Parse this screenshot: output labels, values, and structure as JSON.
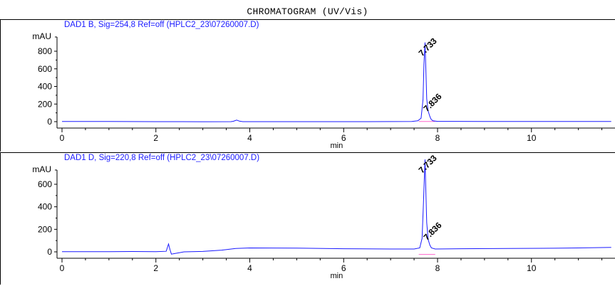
{
  "title": "CHROMATOGRAM (UV/Vis)",
  "chart_data": [
    {
      "type": "line",
      "title": "DAD1 B, Sig=254,8 Ref=off (HPLC2_23\\07260007.D)",
      "ylabel": "mAU",
      "xlabel": "min",
      "xlim": [
        0,
        11.7
      ],
      "ylim": [
        -60,
        900
      ],
      "xticks": [
        0,
        2,
        4,
        6,
        8,
        10
      ],
      "yticks": [
        0,
        200,
        400,
        600,
        800
      ],
      "line_color": "#1a1aff",
      "baseline": [
        {
          "x": 0.0,
          "y": 2
        },
        {
          "x": 1.0,
          "y": 2
        },
        {
          "x": 2.0,
          "y": 0
        },
        {
          "x": 3.0,
          "y": -1
        },
        {
          "x": 3.6,
          "y": 0
        },
        {
          "x": 3.65,
          "y": 4
        },
        {
          "x": 3.72,
          "y": 18
        },
        {
          "x": 3.78,
          "y": 6
        },
        {
          "x": 3.85,
          "y": 0
        },
        {
          "x": 5.0,
          "y": 0
        },
        {
          "x": 6.5,
          "y": 0
        },
        {
          "x": 7.45,
          "y": 2
        },
        {
          "x": 7.58,
          "y": 10
        },
        {
          "x": 7.65,
          "y": 40
        },
        {
          "x": 7.69,
          "y": 250
        },
        {
          "x": 7.71,
          "y": 650
        },
        {
          "x": 7.733,
          "y": 900
        },
        {
          "x": 7.75,
          "y": 620
        },
        {
          "x": 7.77,
          "y": 260
        },
        {
          "x": 7.8,
          "y": 120
        },
        {
          "x": 7.836,
          "y": 60
        },
        {
          "x": 7.86,
          "y": 28
        },
        {
          "x": 7.9,
          "y": 10
        },
        {
          "x": 8.0,
          "y": 3
        },
        {
          "x": 9.0,
          "y": 2
        },
        {
          "x": 10.0,
          "y": 2
        },
        {
          "x": 11.7,
          "y": 2
        }
      ],
      "peaks": [
        {
          "label": "7.733",
          "x": 7.733,
          "y": 900
        },
        {
          "label": "7.836",
          "x": 7.836,
          "y": 60
        }
      ]
    },
    {
      "type": "line",
      "title": "DAD1 D, Sig=220,8 Ref=off (HPLC2_23\\07260007.D)",
      "ylabel": "mAU",
      "xlabel": "min",
      "xlim": [
        0,
        11.7
      ],
      "ylim": [
        -60,
        820
      ],
      "xticks": [
        0,
        2,
        4,
        6,
        8,
        10
      ],
      "yticks": [
        0,
        200,
        400,
        600
      ],
      "line_color": "#1a1aff",
      "baseline": [
        {
          "x": 0.0,
          "y": 2
        },
        {
          "x": 1.0,
          "y": 2
        },
        {
          "x": 1.5,
          "y": 3
        },
        {
          "x": 2.0,
          "y": 2
        },
        {
          "x": 2.22,
          "y": 5
        },
        {
          "x": 2.27,
          "y": 70
        },
        {
          "x": 2.3,
          "y": 20
        },
        {
          "x": 2.33,
          "y": -20
        },
        {
          "x": 2.4,
          "y": -15
        },
        {
          "x": 2.6,
          "y": 0
        },
        {
          "x": 3.0,
          "y": 4
        },
        {
          "x": 3.4,
          "y": 15
        },
        {
          "x": 3.7,
          "y": 30
        },
        {
          "x": 4.0,
          "y": 35
        },
        {
          "x": 5.0,
          "y": 33
        },
        {
          "x": 6.0,
          "y": 28
        },
        {
          "x": 7.0,
          "y": 25
        },
        {
          "x": 7.5,
          "y": 25
        },
        {
          "x": 7.62,
          "y": 35
        },
        {
          "x": 7.67,
          "y": 120
        },
        {
          "x": 7.7,
          "y": 430
        },
        {
          "x": 7.733,
          "y": 820
        },
        {
          "x": 7.75,
          "y": 560
        },
        {
          "x": 7.77,
          "y": 260
        },
        {
          "x": 7.8,
          "y": 110
        },
        {
          "x": 7.836,
          "y": 60
        },
        {
          "x": 7.87,
          "y": 35
        },
        {
          "x": 7.95,
          "y": 25
        },
        {
          "x": 8.5,
          "y": 28
        },
        {
          "x": 9.5,
          "y": 30
        },
        {
          "x": 10.5,
          "y": 32
        },
        {
          "x": 11.0,
          "y": 35
        },
        {
          "x": 11.7,
          "y": 40
        }
      ],
      "peaks": [
        {
          "label": "7.733",
          "x": 7.733,
          "y": 820
        },
        {
          "label": "7.836",
          "x": 7.836,
          "y": 60
        }
      ]
    }
  ]
}
